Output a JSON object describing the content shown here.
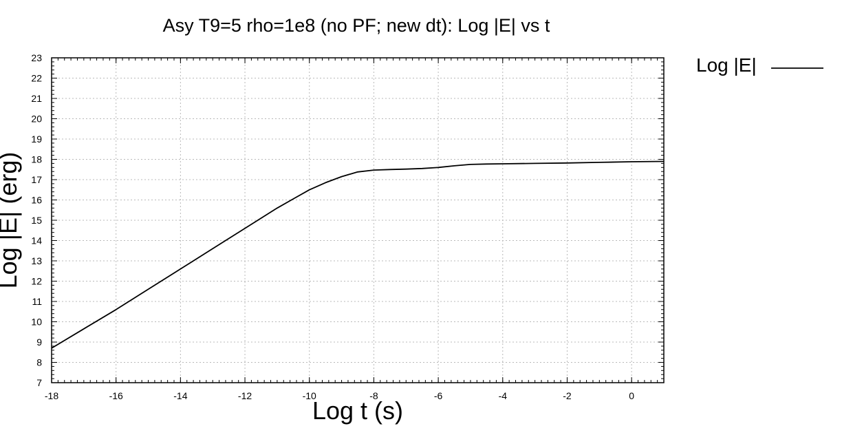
{
  "chart_data": {
    "type": "line",
    "title": "Asy T9=5 rho=1e8 (no PF; new dt): Log |E| vs t",
    "xlabel": "Log t (s)",
    "ylabel": "Log |E| (erg)",
    "xlim": [
      -18,
      1
    ],
    "ylim": [
      7,
      23
    ],
    "xticks": [
      -18,
      -16,
      -14,
      -12,
      -10,
      -8,
      -6,
      -4,
      -2,
      0
    ],
    "yticks": [
      7,
      8,
      9,
      10,
      11,
      12,
      13,
      14,
      15,
      16,
      17,
      18,
      19,
      20,
      21,
      22,
      23
    ],
    "grid": true,
    "legend_position": "right-top",
    "series": [
      {
        "name": "Log |E|",
        "color": "#000000",
        "x": [
          -18,
          -17,
          -16,
          -15,
          -14,
          -13,
          -12,
          -11,
          -10.5,
          -10,
          -9.5,
          -9,
          -8.5,
          -8,
          -7.5,
          -7,
          -6.5,
          -6,
          -5.5,
          -5,
          -4.5,
          -4,
          -3,
          -2,
          -1,
          0,
          1
        ],
        "y": [
          8.7,
          9.65,
          10.6,
          11.6,
          12.6,
          13.6,
          14.6,
          15.6,
          16.05,
          16.5,
          16.85,
          17.15,
          17.38,
          17.47,
          17.5,
          17.52,
          17.55,
          17.6,
          17.68,
          17.75,
          17.77,
          17.78,
          17.8,
          17.82,
          17.85,
          17.88,
          17.9
        ]
      }
    ]
  }
}
